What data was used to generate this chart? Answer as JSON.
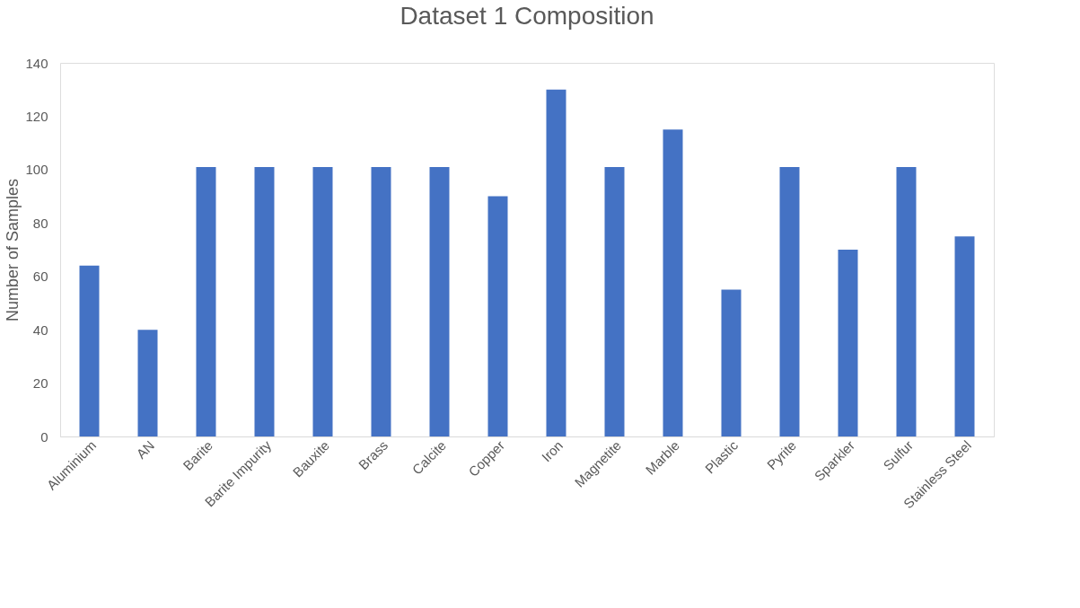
{
  "chart_data": {
    "type": "bar",
    "title": "Dataset 1 Composition",
    "ylabel": "Number of Samples",
    "categories": [
      "Aluminium",
      "AN",
      "Barite",
      "Barite Impurity",
      "Bauxite",
      "Brass",
      "Calcite",
      "Copper",
      "Iron",
      "Magnetite",
      "Marble",
      "Plastic",
      "Pyrite",
      "Sparkler",
      "Sulfur",
      "Stainless Steel"
    ],
    "values": [
      64,
      40,
      101,
      101,
      101,
      101,
      101,
      90,
      130,
      101,
      115,
      55,
      101,
      70,
      101,
      75
    ],
    "color": "#4472c4",
    "ylim": [
      0,
      140
    ],
    "yticks": [
      0,
      20,
      40,
      60,
      80,
      100,
      120,
      140
    ],
    "grid": false
  }
}
